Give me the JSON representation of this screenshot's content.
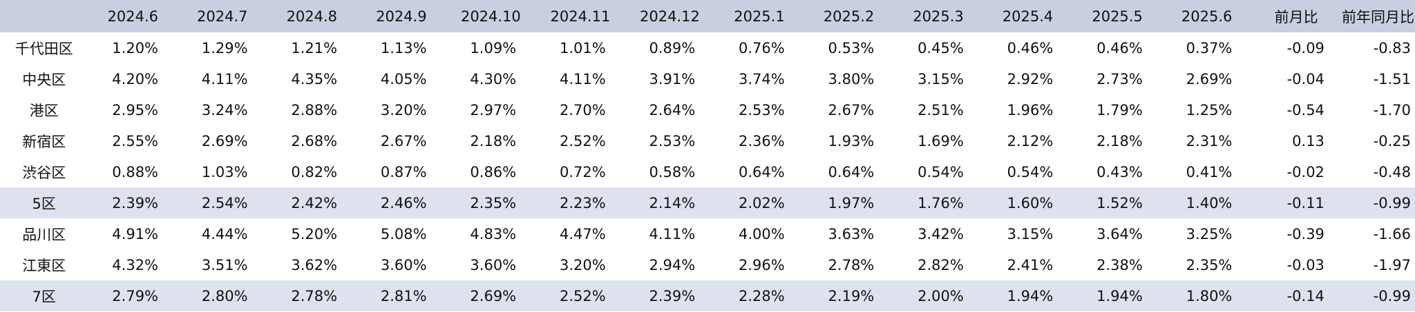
{
  "chart_data": {
    "type": "table",
    "row_header_label": "",
    "columns": [
      "2024.6",
      "2024.7",
      "2024.8",
      "2024.9",
      "2024.10",
      "2024.11",
      "2024.12",
      "2025.1",
      "2025.2",
      "2025.3",
      "2025.4",
      "2025.5",
      "2025.6",
      "前月比",
      "前年同月比"
    ],
    "rows": [
      {
        "label": "千代田区",
        "highlight": false,
        "values": [
          "1.20%",
          "1.29%",
          "1.21%",
          "1.13%",
          "1.09%",
          "1.01%",
          "0.89%",
          "0.76%",
          "0.53%",
          "0.45%",
          "0.46%",
          "0.46%",
          "0.37%",
          "-0.09",
          "-0.83"
        ]
      },
      {
        "label": "中央区",
        "highlight": false,
        "values": [
          "4.20%",
          "4.11%",
          "4.35%",
          "4.05%",
          "4.30%",
          "4.11%",
          "3.91%",
          "3.74%",
          "3.80%",
          "3.15%",
          "2.92%",
          "2.73%",
          "2.69%",
          "-0.04",
          "-1.51"
        ]
      },
      {
        "label": "港区",
        "highlight": false,
        "values": [
          "2.95%",
          "3.24%",
          "2.88%",
          "3.20%",
          "2.97%",
          "2.70%",
          "2.64%",
          "2.53%",
          "2.67%",
          "2.51%",
          "1.96%",
          "1.79%",
          "1.25%",
          "-0.54",
          "-1.70"
        ]
      },
      {
        "label": "新宿区",
        "highlight": false,
        "values": [
          "2.55%",
          "2.69%",
          "2.68%",
          "2.67%",
          "2.18%",
          "2.52%",
          "2.53%",
          "2.36%",
          "1.93%",
          "1.69%",
          "2.12%",
          "2.18%",
          "2.31%",
          "0.13",
          "-0.25"
        ]
      },
      {
        "label": "渋谷区",
        "highlight": false,
        "values": [
          "0.88%",
          "1.03%",
          "0.82%",
          "0.87%",
          "0.86%",
          "0.72%",
          "0.58%",
          "0.64%",
          "0.64%",
          "0.54%",
          "0.54%",
          "0.43%",
          "0.41%",
          "-0.02",
          "-0.48"
        ]
      },
      {
        "label": "5区",
        "highlight": true,
        "values": [
          "2.39%",
          "2.54%",
          "2.42%",
          "2.46%",
          "2.35%",
          "2.23%",
          "2.14%",
          "2.02%",
          "1.97%",
          "1.76%",
          "1.60%",
          "1.52%",
          "1.40%",
          "-0.11",
          "-0.99"
        ]
      },
      {
        "label": "品川区",
        "highlight": false,
        "values": [
          "4.91%",
          "4.44%",
          "5.20%",
          "5.08%",
          "4.83%",
          "4.47%",
          "4.11%",
          "4.00%",
          "3.63%",
          "3.42%",
          "3.15%",
          "3.64%",
          "3.25%",
          "-0.39",
          "-1.66"
        ]
      },
      {
        "label": "江東区",
        "highlight": false,
        "values": [
          "4.32%",
          "3.51%",
          "3.62%",
          "3.60%",
          "3.60%",
          "3.20%",
          "2.94%",
          "2.96%",
          "2.78%",
          "2.82%",
          "2.41%",
          "2.38%",
          "2.35%",
          "-0.03",
          "-1.97"
        ]
      },
      {
        "label": "7区",
        "highlight": true,
        "values": [
          "2.79%",
          "2.80%",
          "2.78%",
          "2.81%",
          "2.69%",
          "2.52%",
          "2.39%",
          "2.28%",
          "2.19%",
          "2.00%",
          "1.94%",
          "1.94%",
          "1.80%",
          "-0.14",
          "-0.99"
        ]
      }
    ],
    "colors": {
      "header_bg": "#c7cfe0",
      "highlight_row_bg": "#dde2ee",
      "text": "#111111"
    }
  }
}
